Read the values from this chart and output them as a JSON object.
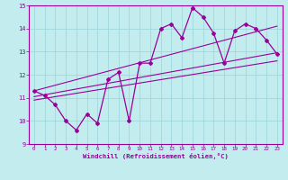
{
  "title": "",
  "xlabel": "Windchill (Refroidissement éolien,°C)",
  "ylabel": "",
  "bg_color": "#c2ecee",
  "grid_color": "#a0d8dc",
  "line_color": "#990099",
  "spine_color": "#990099",
  "tick_color": "#990099",
  "xlim": [
    -0.5,
    23.5
  ],
  "ylim": [
    9,
    15
  ],
  "xticks": [
    0,
    1,
    2,
    3,
    4,
    5,
    6,
    7,
    8,
    9,
    10,
    11,
    12,
    13,
    14,
    15,
    16,
    17,
    18,
    19,
    20,
    21,
    22,
    23
  ],
  "yticks": [
    9,
    10,
    11,
    12,
    13,
    14,
    15
  ],
  "data_x": [
    0,
    1,
    2,
    3,
    4,
    5,
    6,
    7,
    8,
    9,
    10,
    11,
    12,
    13,
    14,
    15,
    16,
    17,
    18,
    19,
    20,
    21,
    22,
    23
  ],
  "data_y": [
    11.3,
    11.1,
    10.7,
    10.0,
    9.6,
    10.3,
    9.9,
    11.8,
    12.1,
    10.0,
    12.5,
    12.5,
    14.0,
    14.2,
    13.6,
    14.9,
    14.5,
    13.8,
    12.5,
    13.9,
    14.2,
    14.0,
    13.5,
    12.9
  ],
  "trend1_x": [
    0,
    23
  ],
  "trend1_y": [
    11.05,
    12.95
  ],
  "trend2_x": [
    0,
    23
  ],
  "trend2_y": [
    11.3,
    14.1
  ],
  "trend3_x": [
    0,
    23
  ],
  "trend3_y": [
    10.9,
    12.6
  ]
}
